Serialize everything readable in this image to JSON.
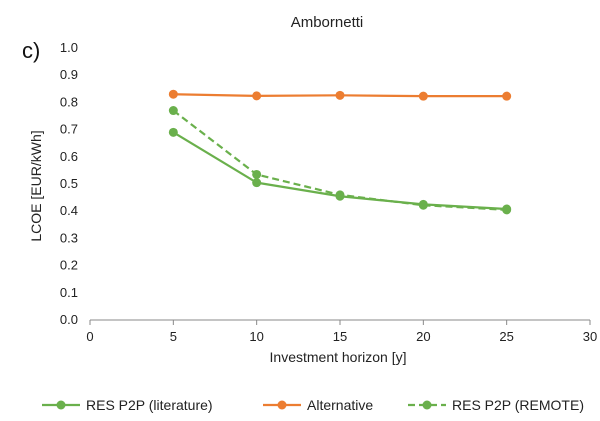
{
  "panel_label": "c)",
  "chart_data": {
    "type": "line",
    "title": "Ambornetti",
    "xlabel": "Investment horizon [y]",
    "ylabel": "LCOE [EUR/kWh]",
    "xlim": [
      0,
      30
    ],
    "ylim": [
      0,
      1.0
    ],
    "xticks": [
      0,
      5,
      10,
      15,
      20,
      25,
      30
    ],
    "yticks": [
      0.0,
      0.1,
      0.2,
      0.3,
      0.4,
      0.5,
      0.6,
      0.7,
      0.8,
      0.9,
      1.0
    ],
    "grid": false,
    "legend_position": "bottom",
    "series": [
      {
        "name": "RES P2P (literature)",
        "color": "#6ab04c",
        "dash": "solid",
        "x": [
          5,
          10,
          15,
          20,
          25
        ],
        "y": [
          0.69,
          0.505,
          0.455,
          0.425,
          0.408
        ]
      },
      {
        "name": "Alternative",
        "color": "#ec7d31",
        "dash": "solid",
        "x": [
          5,
          10,
          15,
          20,
          25
        ],
        "y": [
          0.83,
          0.824,
          0.826,
          0.823,
          0.823
        ]
      },
      {
        "name": "RES P2P (REMOTE)",
        "color": "#6ab04c",
        "dash": "dashed",
        "x": [
          5,
          10,
          15,
          20,
          25
        ],
        "y": [
          0.77,
          0.535,
          0.46,
          0.422,
          0.405
        ]
      }
    ]
  }
}
